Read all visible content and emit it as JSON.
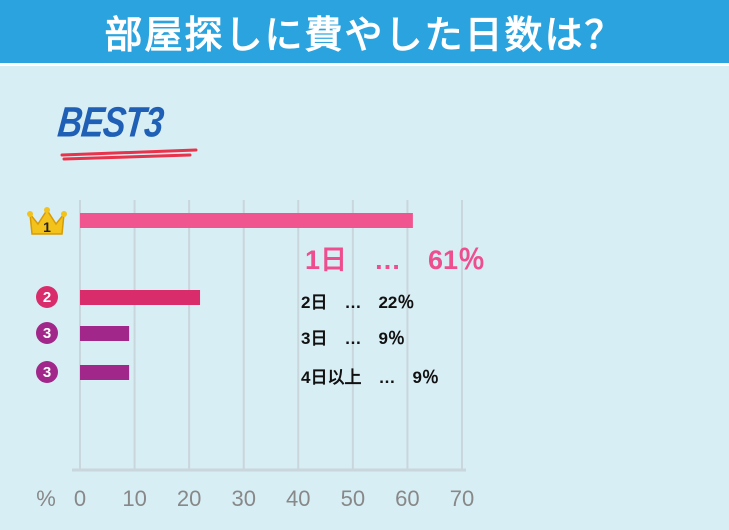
{
  "header": {
    "title": "部屋探しに費やした日数は？"
  },
  "subtitle": "BEST3",
  "colors": {
    "header_bg": "#2aa3df",
    "background": "#d8eef5",
    "rank1": "#f0558f",
    "rank2": "#d92d6b",
    "rank3": "#a1278a",
    "grid": "#c9d6db",
    "axis_text": "#888888",
    "crown": "#f3c21b"
  },
  "ranks": [
    {
      "badge": "1",
      "icon": "crown-icon"
    },
    {
      "badge": "2"
    },
    {
      "badge": "3"
    },
    {
      "badge": "3"
    }
  ],
  "labels": [
    "1日　…　61％",
    "2日　…　22％",
    "3日　…　9％",
    "4日以上　…　9％"
  ],
  "chart_data": {
    "type": "bar",
    "orientation": "horizontal",
    "categories": [
      "1日",
      "2日",
      "3日",
      "4日以上"
    ],
    "values": [
      61,
      22,
      9,
      9
    ],
    "xlabel": "%",
    "xlim": [
      0,
      70
    ],
    "xticks": [
      "0",
      "10",
      "20",
      "30",
      "40",
      "50",
      "60",
      "70"
    ],
    "grid": true
  }
}
